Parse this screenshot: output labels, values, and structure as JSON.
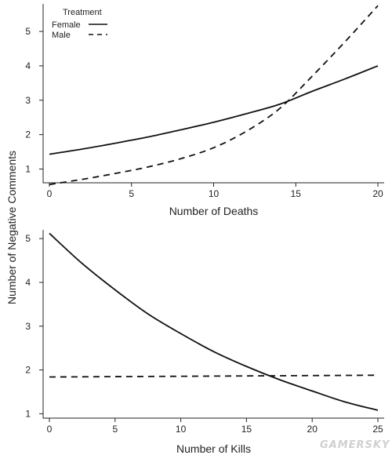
{
  "shared_ylabel": "Number of Negative Comments",
  "watermark": "GAMERSKY",
  "chart_data": [
    {
      "type": "line",
      "xlabel": "Number of Deaths",
      "xlim": [
        0,
        20
      ],
      "ylim": [
        0.6,
        5.8
      ],
      "xticks": [
        0,
        5,
        10,
        15,
        20
      ],
      "yticks": [
        1,
        2,
        3,
        4,
        5
      ],
      "legend": {
        "title": "Treatment",
        "position": "top-left"
      },
      "series": [
        {
          "name": "Female",
          "style": "solid",
          "x": [
            0,
            2,
            4,
            6,
            8,
            10,
            12,
            14,
            16,
            18,
            20
          ],
          "y": [
            1.43,
            1.58,
            1.75,
            1.93,
            2.14,
            2.36,
            2.61,
            2.88,
            3.26,
            3.62,
            4.0
          ]
        },
        {
          "name": "Male",
          "style": "dashed",
          "x": [
            0,
            2,
            4,
            6,
            8,
            10,
            12,
            14,
            16,
            18,
            20
          ],
          "y": [
            0.55,
            0.7,
            0.87,
            1.06,
            1.3,
            1.62,
            2.1,
            2.75,
            3.7,
            4.7,
            5.75
          ]
        }
      ]
    },
    {
      "type": "line",
      "xlabel": "Number of Kills",
      "xlim": [
        0,
        25
      ],
      "ylim": [
        0.9,
        5.2
      ],
      "xticks": [
        0,
        5,
        10,
        15,
        20,
        25
      ],
      "yticks": [
        1,
        2,
        3,
        4,
        5
      ],
      "series": [
        {
          "style": "solid",
          "x": [
            0,
            2.5,
            5,
            7.5,
            10,
            12.5,
            15,
            17.5,
            20,
            22.5,
            25
          ],
          "y": [
            5.12,
            4.43,
            3.83,
            3.28,
            2.83,
            2.42,
            2.08,
            1.78,
            1.52,
            1.27,
            1.08
          ]
        },
        {
          "style": "dashed",
          "x": [
            0,
            25
          ],
          "y": [
            1.84,
            1.88
          ]
        }
      ]
    }
  ]
}
